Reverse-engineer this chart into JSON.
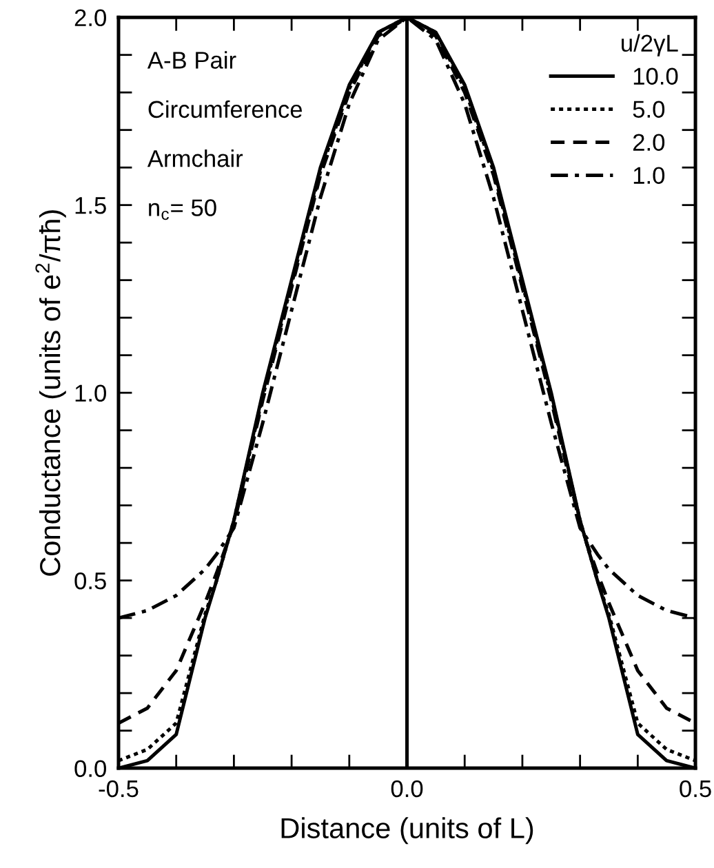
{
  "chart_data": {
    "type": "line",
    "xlabel": "Distance (units of L)",
    "ylabel": "Conductance (units of e$^{2}$/πħ)",
    "legend_title": "u/2γL",
    "legend": "top right",
    "annotations": [
      "A-B Pair",
      "Circumference",
      "Armchair",
      "n$_{c}$= 50"
    ],
    "xlim": [
      -0.5,
      0.5
    ],
    "ylim": [
      0,
      2
    ],
    "xticks": [
      {
        "value": -0.5,
        "label": "-0.5"
      },
      {
        "value": -0.4,
        "label": null
      },
      {
        "value": -0.3,
        "label": null
      },
      {
        "value": -0.2,
        "label": null
      },
      {
        "value": -0.1,
        "label": null
      },
      {
        "value": 0,
        "label": "0.0"
      },
      {
        "value": 0.1,
        "label": null
      },
      {
        "value": 0.2,
        "label": null
      },
      {
        "value": 0.3,
        "label": null
      },
      {
        "value": 0.4,
        "label": null
      },
      {
        "value": 0.5,
        "label": "0.5"
      }
    ],
    "yticks": [
      {
        "value": 0,
        "label": "0.0"
      },
      {
        "value": 0.1,
        "label": null
      },
      {
        "value": 0.2,
        "label": null
      },
      {
        "value": 0.3,
        "label": null
      },
      {
        "value": 0.4,
        "label": null
      },
      {
        "value": 0.5,
        "label": "0.5"
      },
      {
        "value": 0.6,
        "label": null
      },
      {
        "value": 0.7,
        "label": null
      },
      {
        "value": 0.8,
        "label": null
      },
      {
        "value": 0.9,
        "label": null
      },
      {
        "value": 1,
        "label": "1.0"
      },
      {
        "value": 1.1,
        "label": null
      },
      {
        "value": 1.2,
        "label": null
      },
      {
        "value": 1.3,
        "label": null
      },
      {
        "value": 1.4,
        "label": null
      },
      {
        "value": 1.5,
        "label": "1.5"
      },
      {
        "value": 1.6,
        "label": null
      },
      {
        "value": 1.7,
        "label": null
      },
      {
        "value": 1.8,
        "label": null
      },
      {
        "value": 1.9,
        "label": null
      },
      {
        "value": 2,
        "label": "2.0"
      }
    ],
    "grid": false,
    "marker": "none",
    "x": [
      -0.5,
      -0.45,
      -0.4,
      -0.35,
      -0.33,
      -0.3,
      -0.25,
      -0.2,
      -0.15,
      -0.1,
      -0.05,
      0,
      0.05,
      0.1,
      0.15,
      0.2,
      0.25,
      0.3,
      0.33,
      0.35,
      0.4,
      0.45,
      0.5
    ],
    "ref_lines": [
      {
        "axis": "x",
        "value": 0,
        "label": null,
        "color": "#000000",
        "line_style": "solid"
      }
    ],
    "series": [
      {
        "name": "10.0",
        "color": "#000000",
        "line_style": "solid",
        "values": [
          0,
          0.02,
          0.09,
          0.4,
          0.5,
          0.66,
          1.0,
          1.3,
          1.6,
          1.82,
          1.96,
          2,
          1.96,
          1.82,
          1.6,
          1.3,
          1.0,
          0.66,
          0.5,
          0.4,
          0.09,
          0.02,
          0
        ]
      },
      {
        "name": "5.0",
        "color": "#000000",
        "line_style": "dotted",
        "values": [
          0.02,
          0.05,
          0.12,
          0.41,
          0.5,
          0.66,
          0.99,
          1.29,
          1.59,
          1.81,
          1.96,
          2,
          1.96,
          1.81,
          1.59,
          1.29,
          0.99,
          0.66,
          0.5,
          0.41,
          0.12,
          0.05,
          0.02
        ]
      },
      {
        "name": "2.0",
        "color": "#000000",
        "line_style": "dashed",
        "values": [
          0.12,
          0.16,
          0.26,
          0.44,
          0.52,
          0.65,
          0.98,
          1.28,
          1.58,
          1.8,
          1.95,
          2,
          1.95,
          1.8,
          1.58,
          1.28,
          0.98,
          0.65,
          0.52,
          0.44,
          0.26,
          0.16,
          0.12
        ]
      },
      {
        "name": "1.0",
        "color": "#000000",
        "line_style": "dashdot",
        "values": [
          0.4,
          0.42,
          0.46,
          0.53,
          0.57,
          0.64,
          0.92,
          1.22,
          1.52,
          1.77,
          1.94,
          2,
          1.94,
          1.77,
          1.52,
          1.22,
          0.92,
          0.64,
          0.57,
          0.53,
          0.46,
          0.42,
          0.4
        ]
      }
    ]
  }
}
